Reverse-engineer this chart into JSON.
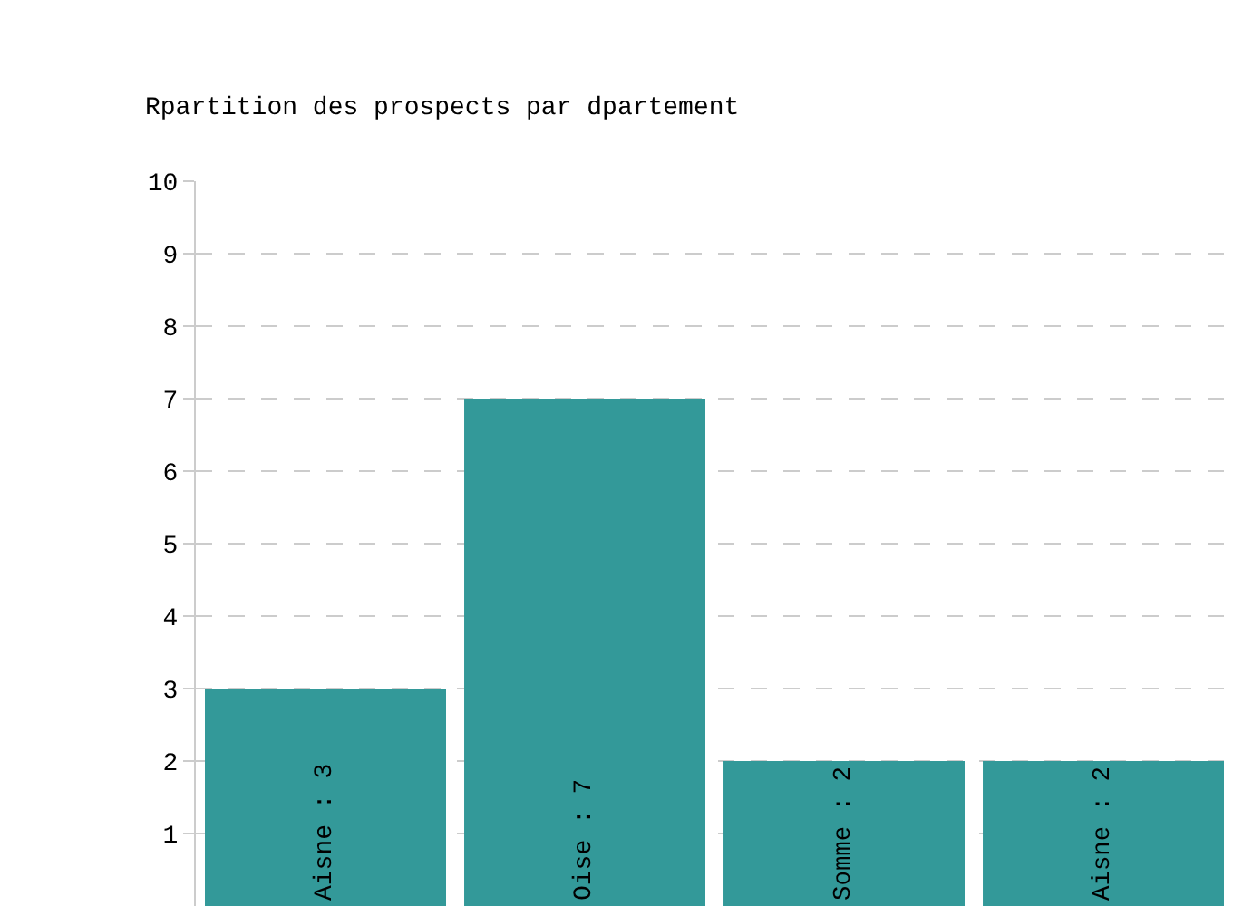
{
  "chart_data": {
    "type": "bar",
    "title": "Rpartition des prospects par dpartement",
    "categories": [
      null,
      null,
      null,
      null
    ],
    "values": [
      3,
      7,
      2,
      2
    ],
    "value_labels": [
      "Aisne : 3",
      "Oise : 7",
      "Somme : 2",
      "Aisne : 2"
    ],
    "color": "#339999",
    "ylim": [
      0,
      10
    ],
    "yticks": [
      1,
      2,
      3,
      4,
      5,
      6,
      7,
      8,
      9,
      10
    ],
    "grid": "y",
    "legend": false
  }
}
